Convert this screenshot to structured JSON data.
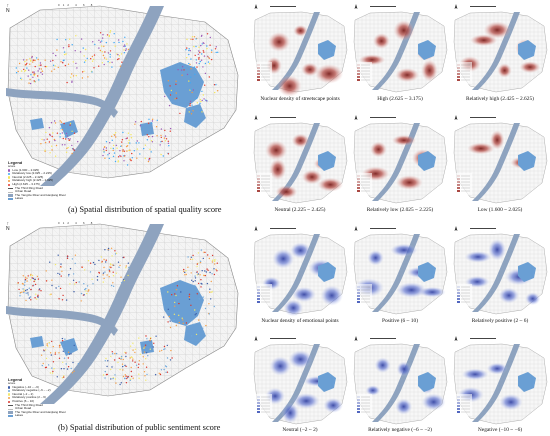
{
  "large_maps": [
    {
      "caption": "(a) Spatial distribution of spatial quality score",
      "legend": {
        "title": "Legend",
        "subtitle": "score",
        "items": [
          {
            "label": "Low (1.600 – 2.025)",
            "color": "#9b59b6"
          },
          {
            "label": "Relatively low (2.025 – 2.225)",
            "color": "#3fa9f5"
          },
          {
            "label": "Neutral (2.225 – 2.425)",
            "color": "#f5e65a"
          },
          {
            "label": "Relatively high (2.425 – 2.625)",
            "color": "#f59a3f"
          },
          {
            "label": "High (2.625 – 3.175)",
            "color": "#e23a2e"
          },
          {
            "label": "The Third Ring Road",
            "color": "#555555"
          },
          {
            "label": "Urban Road",
            "color": "#bbbbbb"
          },
          {
            "label": "The Yangtze River and Hanjiang River",
            "color": "#8ea3bf"
          },
          {
            "label": "Lakes",
            "color": "#6a9fd4"
          }
        ]
      },
      "scale_labels": [
        "0",
        "1",
        "2",
        "4",
        "6",
        "8"
      ]
    },
    {
      "caption": "(b) Spatial distribution of public sentiment score",
      "legend": {
        "title": "Legend",
        "subtitle": "score",
        "items": [
          {
            "label": "Negative (−10 – −6)",
            "color": "#3d5ea8"
          },
          {
            "label": "Relatively negative (−6 – −2)",
            "color": "#6fa8dc"
          },
          {
            "label": "Neutral (−2 – 2)",
            "color": "#f2e96b"
          },
          {
            "label": "Relatively positive (2 – 6)",
            "color": "#f5a04a"
          },
          {
            "label": "Positive (6 – 10)",
            "color": "#d9342b"
          },
          {
            "label": "The Third Ring Road",
            "color": "#555555"
          },
          {
            "label": "Urban Road",
            "color": "#bbbbbb"
          },
          {
            "label": "The Yangtze River and Hanjiang River",
            "color": "#8ea3bf"
          },
          {
            "label": "Lakes",
            "color": "#6a9fd4"
          }
        ]
      },
      "scale_labels": [
        "0",
        "1",
        "2",
        "4",
        "6",
        "8"
      ]
    }
  ],
  "small_maps_quality": [
    {
      "caption": "Nuclear density of streetscape points"
    },
    {
      "caption": "High (2.625 ~ 3.175)"
    },
    {
      "caption": "Relatively high (2.425 ~ 2.625)"
    },
    {
      "caption": "Neutral (2.225 ~ 2.425)"
    },
    {
      "caption": "Relatively low (2.025 ~ 2.225)"
    },
    {
      "caption": "Low (1.600 ~ 2.025)"
    }
  ],
  "small_maps_sentiment": [
    {
      "caption": "Nuclear density of emotional points"
    },
    {
      "caption": "Positive (6 ~ 10)"
    },
    {
      "caption": "Relatively positive (2 ~ 6)"
    },
    {
      "caption": "Neutral (−2 ~ 2)"
    },
    {
      "caption": "Relatively negative (−6 ~ −2)"
    },
    {
      "caption": "Negative (−10 ~ −6)"
    }
  ],
  "north_label": "N",
  "colors": {
    "river": "#8ea3bf",
    "lake": "#6a9fd4",
    "land": "#f4f4f4",
    "road": "#c9c9c9",
    "density_red": "#a0332e",
    "density_blue": "#3e55b8"
  }
}
